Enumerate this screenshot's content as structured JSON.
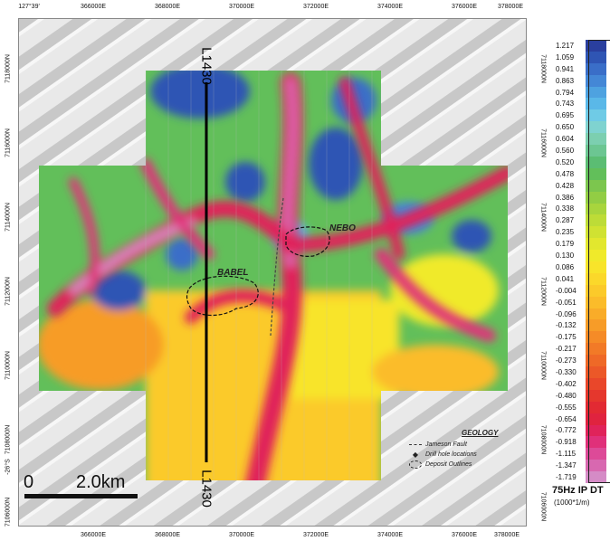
{
  "map": {
    "longitude_label": "127°39'",
    "latitude_label": "-26°S",
    "eastings": [
      "366000E",
      "368000E",
      "370000E",
      "372000E",
      "374000E",
      "376000E",
      "378000E"
    ],
    "northings": [
      "7118000N",
      "7116000N",
      "7114000N",
      "7112000N",
      "7110000N",
      "7108000N",
      "7106000N"
    ],
    "line_top_label": "L1430",
    "line_bottom_label": "L1430",
    "deposits": [
      {
        "name": "BABEL"
      },
      {
        "name": "NEBO"
      }
    ],
    "scale_zero": "0",
    "scale_length": "2.0km"
  },
  "geology": {
    "title": "GEOLOGY",
    "items": [
      {
        "symbol": "fault",
        "label": "Jameson Fault"
      },
      {
        "symbol": "drill",
        "label": "Drill hole locations"
      },
      {
        "symbol": "outline",
        "label": "Deposit Outlines"
      }
    ]
  },
  "legend": {
    "title": "75Hz IP DT",
    "units": "(1000*1/m)",
    "entries": [
      {
        "label": "1.217",
        "color": "#2a3f9e"
      },
      {
        "label": "1.059",
        "color": "#2f55b4"
      },
      {
        "label": "0.941",
        "color": "#3a6ec8"
      },
      {
        "label": "0.863",
        "color": "#4487d6"
      },
      {
        "label": "0.794",
        "color": "#4ea2e0"
      },
      {
        "label": "0.743",
        "color": "#5ab8e8"
      },
      {
        "label": "0.695",
        "color": "#6fcbe6"
      },
      {
        "label": "0.650",
        "color": "#7fd3d0"
      },
      {
        "label": "0.604",
        "color": "#7ccfb0"
      },
      {
        "label": "0.560",
        "color": "#6cc692"
      },
      {
        "label": "0.520",
        "color": "#5bbd73"
      },
      {
        "label": "0.478",
        "color": "#62bf5a"
      },
      {
        "label": "0.428",
        "color": "#7cc64e"
      },
      {
        "label": "0.386",
        "color": "#92cd44"
      },
      {
        "label": "0.338",
        "color": "#a8d53d"
      },
      {
        "label": "0.287",
        "color": "#bddc37"
      },
      {
        "label": "0.235",
        "color": "#d0e232"
      },
      {
        "label": "0.179",
        "color": "#e2e72e"
      },
      {
        "label": "0.130",
        "color": "#f0ea2a"
      },
      {
        "label": "0.086",
        "color": "#f8e42a"
      },
      {
        "label": "0.041",
        "color": "#fbd82a"
      },
      {
        "label": "-0.004",
        "color": "#fbca2a"
      },
      {
        "label": "-0.051",
        "color": "#fbbc2a"
      },
      {
        "label": "-0.096",
        "color": "#f9ac29"
      },
      {
        "label": "-0.132",
        "color": "#f79c28"
      },
      {
        "label": "-0.175",
        "color": "#f58b27"
      },
      {
        "label": "-0.217",
        "color": "#f27a27"
      },
      {
        "label": "-0.273",
        "color": "#ef6927"
      },
      {
        "label": "-0.330",
        "color": "#ec5828"
      },
      {
        "label": "-0.402",
        "color": "#e9472a"
      },
      {
        "label": "-0.480",
        "color": "#e5372d"
      },
      {
        "label": "-0.555",
        "color": "#e22a33"
      },
      {
        "label": "-0.654",
        "color": "#e0233f"
      },
      {
        "label": "-0.772",
        "color": "#e0235a"
      },
      {
        "label": "-0.918",
        "color": "#e0307a"
      },
      {
        "label": "-1.115",
        "color": "#dd4a98"
      },
      {
        "label": "-1.347",
        "color": "#d868b0"
      },
      {
        "label": "-1.719",
        "color": "#d58bc6"
      }
    ]
  }
}
